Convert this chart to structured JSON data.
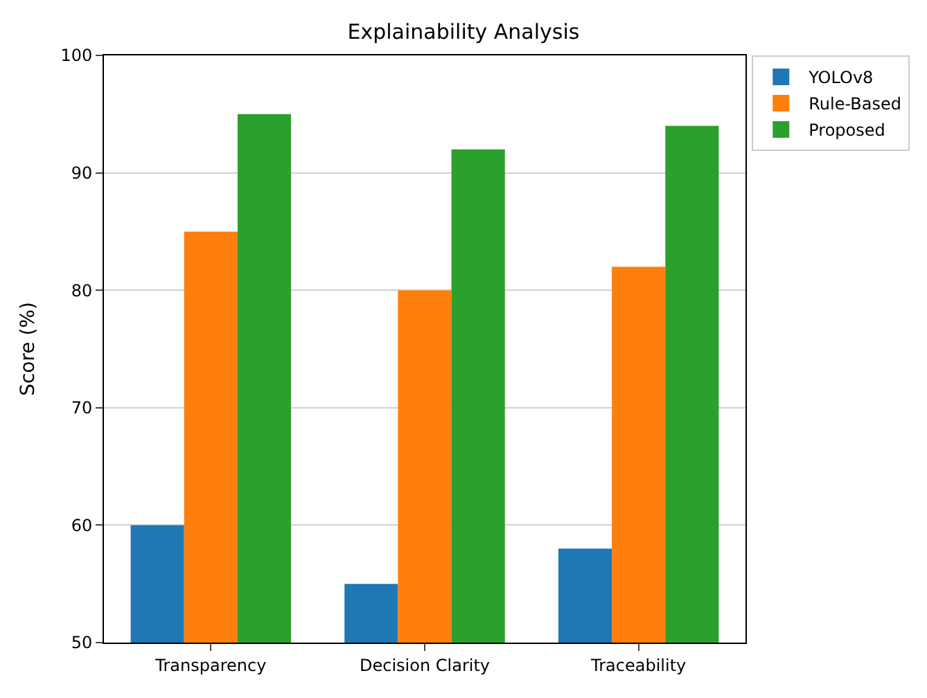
{
  "chart_data": {
    "type": "bar",
    "title": "Explainability Analysis",
    "ylabel": "Score (%)",
    "categories": [
      "Transparency",
      "Decision Clarity",
      "Traceability"
    ],
    "series": [
      {
        "name": "YOLOv8",
        "color": "#1f77b4",
        "values": [
          60,
          55,
          58
        ]
      },
      {
        "name": "Rule-Based",
        "color": "#ff7f0e",
        "values": [
          85,
          80,
          82
        ]
      },
      {
        "name": "Proposed",
        "color": "#2ca02c",
        "values": [
          95,
          92,
          94
        ]
      }
    ],
    "ylim": [
      50,
      100
    ],
    "yticks": [
      50,
      60,
      70,
      80,
      90,
      100
    ],
    "grid": "y",
    "legend": "top right"
  }
}
